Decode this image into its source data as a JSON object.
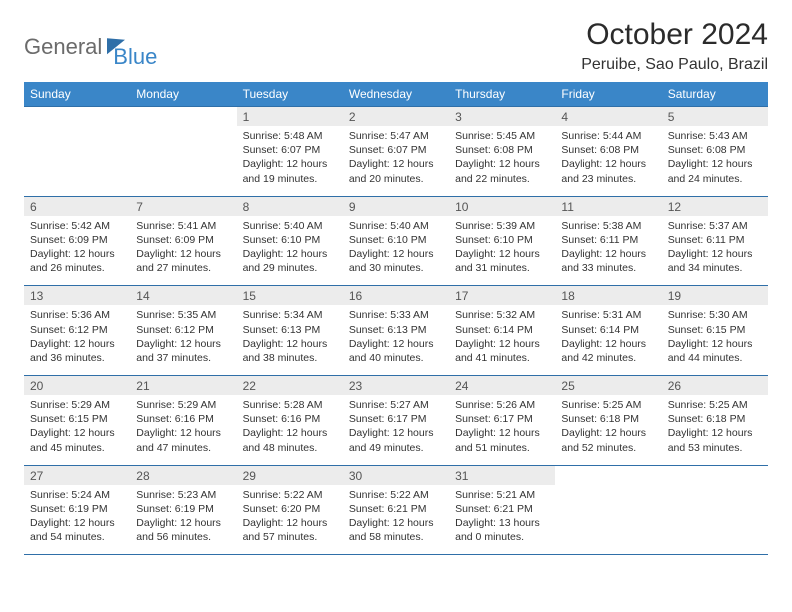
{
  "logo": {
    "text1": "General",
    "text2": "Blue"
  },
  "title": "October 2024",
  "location": "Peruibe, Sao Paulo, Brazil",
  "colors": {
    "header_bg": "#3a86c8",
    "header_text": "#ffffff",
    "daynum_bg": "#ececec",
    "rule": "#2f6fa8",
    "logo_gray": "#6b6b6b",
    "logo_blue": "#3a86c8"
  },
  "day_names": [
    "Sunday",
    "Monday",
    "Tuesday",
    "Wednesday",
    "Thursday",
    "Friday",
    "Saturday"
  ],
  "weeks": [
    {
      "nums": [
        "",
        "",
        "1",
        "2",
        "3",
        "4",
        "5"
      ],
      "details": [
        "",
        "",
        "Sunrise: 5:48 AM\nSunset: 6:07 PM\nDaylight: 12 hours and 19 minutes.",
        "Sunrise: 5:47 AM\nSunset: 6:07 PM\nDaylight: 12 hours and 20 minutes.",
        "Sunrise: 5:45 AM\nSunset: 6:08 PM\nDaylight: 12 hours and 22 minutes.",
        "Sunrise: 5:44 AM\nSunset: 6:08 PM\nDaylight: 12 hours and 23 minutes.",
        "Sunrise: 5:43 AM\nSunset: 6:08 PM\nDaylight: 12 hours and 24 minutes."
      ]
    },
    {
      "nums": [
        "6",
        "7",
        "8",
        "9",
        "10",
        "11",
        "12"
      ],
      "details": [
        "Sunrise: 5:42 AM\nSunset: 6:09 PM\nDaylight: 12 hours and 26 minutes.",
        "Sunrise: 5:41 AM\nSunset: 6:09 PM\nDaylight: 12 hours and 27 minutes.",
        "Sunrise: 5:40 AM\nSunset: 6:10 PM\nDaylight: 12 hours and 29 minutes.",
        "Sunrise: 5:40 AM\nSunset: 6:10 PM\nDaylight: 12 hours and 30 minutes.",
        "Sunrise: 5:39 AM\nSunset: 6:10 PM\nDaylight: 12 hours and 31 minutes.",
        "Sunrise: 5:38 AM\nSunset: 6:11 PM\nDaylight: 12 hours and 33 minutes.",
        "Sunrise: 5:37 AM\nSunset: 6:11 PM\nDaylight: 12 hours and 34 minutes."
      ]
    },
    {
      "nums": [
        "13",
        "14",
        "15",
        "16",
        "17",
        "18",
        "19"
      ],
      "details": [
        "Sunrise: 5:36 AM\nSunset: 6:12 PM\nDaylight: 12 hours and 36 minutes.",
        "Sunrise: 5:35 AM\nSunset: 6:12 PM\nDaylight: 12 hours and 37 minutes.",
        "Sunrise: 5:34 AM\nSunset: 6:13 PM\nDaylight: 12 hours and 38 minutes.",
        "Sunrise: 5:33 AM\nSunset: 6:13 PM\nDaylight: 12 hours and 40 minutes.",
        "Sunrise: 5:32 AM\nSunset: 6:14 PM\nDaylight: 12 hours and 41 minutes.",
        "Sunrise: 5:31 AM\nSunset: 6:14 PM\nDaylight: 12 hours and 42 minutes.",
        "Sunrise: 5:30 AM\nSunset: 6:15 PM\nDaylight: 12 hours and 44 minutes."
      ]
    },
    {
      "nums": [
        "20",
        "21",
        "22",
        "23",
        "24",
        "25",
        "26"
      ],
      "details": [
        "Sunrise: 5:29 AM\nSunset: 6:15 PM\nDaylight: 12 hours and 45 minutes.",
        "Sunrise: 5:29 AM\nSunset: 6:16 PM\nDaylight: 12 hours and 47 minutes.",
        "Sunrise: 5:28 AM\nSunset: 6:16 PM\nDaylight: 12 hours and 48 minutes.",
        "Sunrise: 5:27 AM\nSunset: 6:17 PM\nDaylight: 12 hours and 49 minutes.",
        "Sunrise: 5:26 AM\nSunset: 6:17 PM\nDaylight: 12 hours and 51 minutes.",
        "Sunrise: 5:25 AM\nSunset: 6:18 PM\nDaylight: 12 hours and 52 minutes.",
        "Sunrise: 5:25 AM\nSunset: 6:18 PM\nDaylight: 12 hours and 53 minutes."
      ]
    },
    {
      "nums": [
        "27",
        "28",
        "29",
        "30",
        "31",
        "",
        ""
      ],
      "details": [
        "Sunrise: 5:24 AM\nSunset: 6:19 PM\nDaylight: 12 hours and 54 minutes.",
        "Sunrise: 5:23 AM\nSunset: 6:19 PM\nDaylight: 12 hours and 56 minutes.",
        "Sunrise: 5:22 AM\nSunset: 6:20 PM\nDaylight: 12 hours and 57 minutes.",
        "Sunrise: 5:22 AM\nSunset: 6:21 PM\nDaylight: 12 hours and 58 minutes.",
        "Sunrise: 5:21 AM\nSunset: 6:21 PM\nDaylight: 13 hours and 0 minutes.",
        "",
        ""
      ]
    }
  ]
}
